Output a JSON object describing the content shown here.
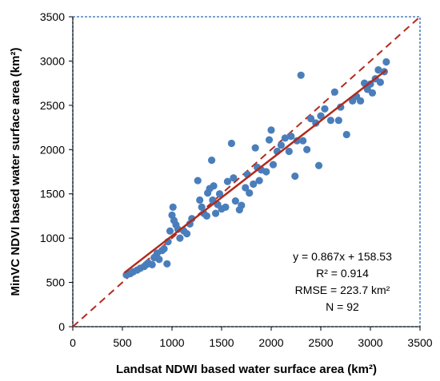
{
  "chart_data": {
    "type": "scatter",
    "xlabel": "Landsat NDWI based water surface area (km²)",
    "ylabel": "MinVC NDVI based water surface area (km²)",
    "xlim": [
      0,
      3500
    ],
    "ylim": [
      0,
      3500
    ],
    "x_ticks": [
      "0",
      "500",
      "1000",
      "1500",
      "2000",
      "2500",
      "3000",
      "3500"
    ],
    "y_ticks": [
      "0",
      "500",
      "1000",
      "1500",
      "2000",
      "2500",
      "3000",
      "3500"
    ],
    "grid": false,
    "annotations": {
      "equation": "y = 0.867x + 158.53",
      "r2": "R² = 0.914",
      "rmse": "RMSE = 223.7 km²",
      "n": "N = 92"
    },
    "fit_line": {
      "slope": 0.867,
      "intercept": 158.53,
      "x_range": [
        520,
        3160
      ]
    },
    "identity_line": {
      "x_range": [
        0,
        3500
      ]
    },
    "colors": {
      "points": "#4a7ebb",
      "fit_line": "#b22a1d",
      "identity_line": "#b22a1d",
      "frame": "#4f81bd"
    },
    "points": [
      [
        540,
        585
      ],
      [
        580,
        600
      ],
      [
        610,
        620
      ],
      [
        650,
        640
      ],
      [
        680,
        660
      ],
      [
        720,
        680
      ],
      [
        740,
        700
      ],
      [
        760,
        720
      ],
      [
        800,
        700
      ],
      [
        820,
        780
      ],
      [
        850,
        830
      ],
      [
        870,
        760
      ],
      [
        900,
        860
      ],
      [
        920,
        880
      ],
      [
        950,
        710
      ],
      [
        960,
        960
      ],
      [
        980,
        1080
      ],
      [
        1000,
        1260
      ],
      [
        1010,
        1350
      ],
      [
        1020,
        1200
      ],
      [
        1040,
        1150
      ],
      [
        1060,
        1100
      ],
      [
        1080,
        1000
      ],
      [
        1120,
        1080
      ],
      [
        1150,
        1050
      ],
      [
        1180,
        1160
      ],
      [
        1200,
        1220
      ],
      [
        1260,
        1650
      ],
      [
        1280,
        1430
      ],
      [
        1300,
        1350
      ],
      [
        1320,
        1280
      ],
      [
        1350,
        1250
      ],
      [
        1360,
        1510
      ],
      [
        1380,
        1560
      ],
      [
        1400,
        1880
      ],
      [
        1410,
        1430
      ],
      [
        1420,
        1590
      ],
      [
        1440,
        1280
      ],
      [
        1460,
        1380
      ],
      [
        1480,
        1500
      ],
      [
        1500,
        1330
      ],
      [
        1540,
        1350
      ],
      [
        1560,
        1640
      ],
      [
        1600,
        2070
      ],
      [
        1620,
        1680
      ],
      [
        1640,
        1420
      ],
      [
        1680,
        1320
      ],
      [
        1700,
        1370
      ],
      [
        1740,
        1570
      ],
      [
        1760,
        1720
      ],
      [
        1780,
        1510
      ],
      [
        1820,
        1610
      ],
      [
        1840,
        2020
      ],
      [
        1860,
        1800
      ],
      [
        1880,
        1650
      ],
      [
        1900,
        1770
      ],
      [
        1950,
        1750
      ],
      [
        1980,
        2110
      ],
      [
        2000,
        2220
      ],
      [
        2020,
        1830
      ],
      [
        2060,
        1980
      ],
      [
        2100,
        2050
      ],
      [
        2140,
        2130
      ],
      [
        2180,
        1980
      ],
      [
        2200,
        2150
      ],
      [
        2240,
        1700
      ],
      [
        2260,
        2100
      ],
      [
        2300,
        2840
      ],
      [
        2320,
        2100
      ],
      [
        2360,
        2000
      ],
      [
        2400,
        2350
      ],
      [
        2450,
        2300
      ],
      [
        2480,
        1820
      ],
      [
        2500,
        2380
      ],
      [
        2540,
        2460
      ],
      [
        2600,
        2330
      ],
      [
        2640,
        2650
      ],
      [
        2680,
        2330
      ],
      [
        2700,
        2480
      ],
      [
        2760,
        2170
      ],
      [
        2820,
        2550
      ],
      [
        2860,
        2600
      ],
      [
        2900,
        2550
      ],
      [
        2940,
        2750
      ],
      [
        2970,
        2680
      ],
      [
        3000,
        2740
      ],
      [
        3020,
        2640
      ],
      [
        3050,
        2800
      ],
      [
        3080,
        2900
      ],
      [
        3100,
        2760
      ],
      [
        3140,
        2880
      ],
      [
        3160,
        2990
      ]
    ]
  }
}
